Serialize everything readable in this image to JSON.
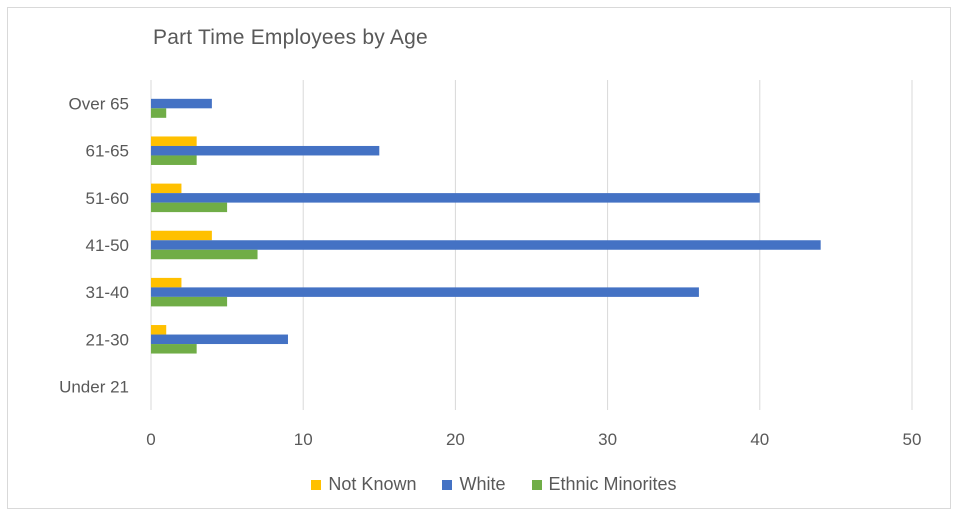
{
  "chart_data": {
    "type": "bar",
    "orientation": "horizontal",
    "title": "Part Time Employees by Age",
    "xlabel": "",
    "ylabel": "",
    "xlim": [
      0,
      50
    ],
    "xticks": [
      0,
      10,
      20,
      30,
      40,
      50
    ],
    "categories": [
      "Over 65",
      "61-65",
      "51-60",
      "41-50",
      "31-40",
      "21-30",
      "Under 21"
    ],
    "series": [
      {
        "name": "Not Known",
        "color": "#ffc000",
        "values": [
          0,
          3,
          2,
          4,
          2,
          1,
          0
        ]
      },
      {
        "name": "White",
        "color": "#4472c4",
        "values": [
          4,
          15,
          40,
          44,
          36,
          9,
          0
        ]
      },
      {
        "name": "Ethnic Minorites",
        "color": "#70ad47",
        "values": [
          1,
          3,
          5,
          7,
          5,
          3,
          0
        ]
      }
    ],
    "grid": "vertical",
    "legend_position": "bottom"
  }
}
